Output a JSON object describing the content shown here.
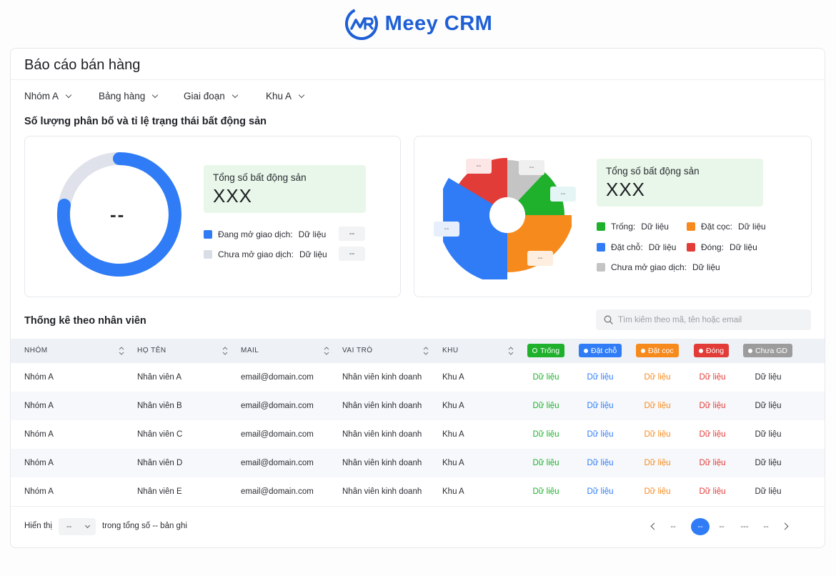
{
  "app": {
    "logo_text": "Meey CRM"
  },
  "page": {
    "title": "Báo cáo bán hàng"
  },
  "filters": [
    {
      "label": "Nhóm A"
    },
    {
      "label": "Bảng hàng"
    },
    {
      "label": "Giai đoạn"
    },
    {
      "label": "Khu A"
    }
  ],
  "distribution": {
    "title": "Số lượng phân bố và tỉ lệ trạng thái bất động sản",
    "left": {
      "center_value": "--",
      "total_label": "Tổng số bất động sản",
      "total_value": "XXX",
      "legend": [
        {
          "label": "Đang mở giao dịch:",
          "value": "Dữ liệu",
          "count": "--",
          "color": "#2f7cf6"
        },
        {
          "label": "Chưa mở giao dịch:",
          "value": "Dữ liệu",
          "count": "--",
          "color": "#d9dde6"
        }
      ]
    },
    "right": {
      "total_label": "Tổng số bất động sản",
      "total_value": "XXX",
      "tags": [
        "--",
        "--",
        "--",
        "--",
        "--"
      ],
      "legend": [
        {
          "label": "Trống:",
          "value": "Dữ liệu",
          "color": "#1fb02c"
        },
        {
          "label": "Đặt cọc:",
          "value": "Dữ liệu",
          "color": "#f78a1d"
        },
        {
          "label": "Đặt chỗ:",
          "value": "Dữ liệu",
          "color": "#2f7cf6"
        },
        {
          "label": "Đóng:",
          "value": "Dữ liệu",
          "color": "#e23c39"
        },
        {
          "label": "Chưa mở giao dịch:",
          "value": "Dữ liệu",
          "color": "#c4c4c4"
        }
      ]
    }
  },
  "staff": {
    "title": "Thống kê theo nhân viên",
    "search_placeholder": "Tìm kiếm theo mã, tên hoặc email",
    "columns": [
      "NHÓM",
      "HỌ TÊN",
      "MAIL",
      "VAI TRÒ",
      "KHU"
    ],
    "status_columns": [
      {
        "label": "Trống",
        "color": "#1fb02c"
      },
      {
        "label": "Đặt chỗ",
        "color": "#2f7cf6"
      },
      {
        "label": "Đặt cọc",
        "color": "#f78a1d"
      },
      {
        "label": "Đóng",
        "color": "#e23c39"
      },
      {
        "label": "Chưa GD",
        "color": "#9c9c9c"
      }
    ],
    "rows": [
      {
        "group": "Nhóm A",
        "name": "Nhân viên A",
        "mail": "email@domain.com",
        "role": "Nhân viên kinh doanh",
        "zone": "Khu A",
        "s1": "Dữ liệu",
        "s2": "Dữ liệu",
        "s3": "Dữ liệu",
        "s4": "Dữ liệu",
        "s5": "Dữ liệu"
      },
      {
        "group": "Nhóm A",
        "name": "Nhân viên B",
        "mail": "email@domain.com",
        "role": "Nhân viên kinh doanh",
        "zone": "Khu A",
        "s1": "Dữ liệu",
        "s2": "Dữ liệu",
        "s3": "Dữ liệu",
        "s4": "Dữ liệu",
        "s5": "Dữ liệu"
      },
      {
        "group": "Nhóm A",
        "name": "Nhân viên C",
        "mail": "email@domain.com",
        "role": "Nhân viên kinh doanh",
        "zone": "Khu A",
        "s1": "Dữ liệu",
        "s2": "Dữ liệu",
        "s3": "Dữ liệu",
        "s4": "Dữ liệu",
        "s5": "Dữ liệu"
      },
      {
        "group": "Nhóm A",
        "name": "Nhân viên D",
        "mail": "email@domain.com",
        "role": "Nhân viên kinh doanh",
        "zone": "Khu A",
        "s1": "Dữ liệu",
        "s2": "Dữ liệu",
        "s3": "Dữ liệu",
        "s4": "Dữ liệu",
        "s5": "Dữ liệu"
      },
      {
        "group": "Nhóm A",
        "name": "Nhân viên E",
        "mail": "email@domain.com",
        "role": "Nhân viên kinh doanh",
        "zone": "Khu A",
        "s1": "Dữ liệu",
        "s2": "Dữ liệu",
        "s3": "Dữ liệu",
        "s4": "Dữ liệu",
        "s5": "Dữ liệu"
      }
    ]
  },
  "footer": {
    "show_label": "Hiển thị",
    "page_size": "--",
    "total_text": "trong tổng số -- bản ghi",
    "pages": [
      "--",
      "--",
      "--",
      "---",
      "--"
    ]
  }
}
